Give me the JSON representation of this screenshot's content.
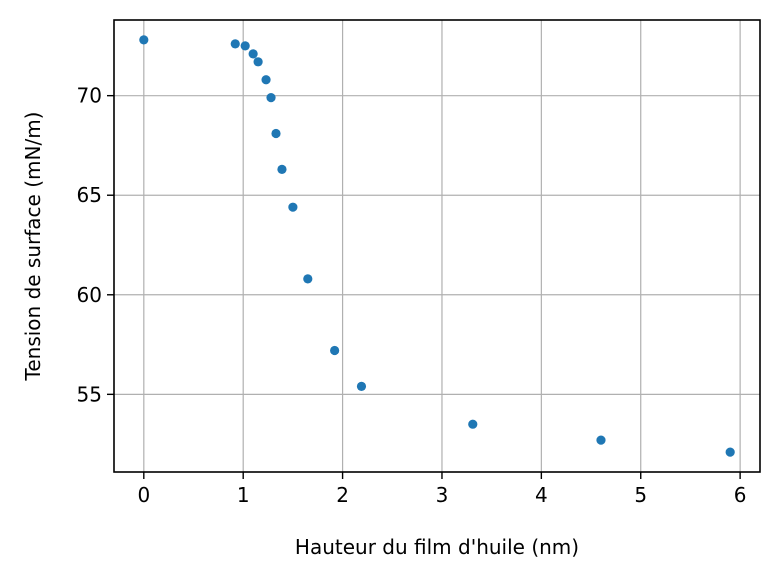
{
  "chart_data": {
    "type": "scatter",
    "xlabel": "Hauteur du film d'huile (nm)",
    "ylabel": "Tension de surface (mN/m)",
    "xlim": [
      -0.3,
      6.2
    ],
    "ylim": [
      51.1,
      73.8
    ],
    "xticks": [
      "0",
      "1",
      "2",
      "3",
      "4",
      "5",
      "6"
    ],
    "yticks": [
      "55",
      "60",
      "65",
      "70"
    ],
    "grid": true,
    "legend": "none",
    "marker_color": "#1f77b4",
    "series": [
      {
        "x": [
          0.0,
          0.92,
          1.02,
          1.1,
          1.15,
          1.23,
          1.28,
          1.33,
          1.39,
          1.5,
          1.65,
          1.92,
          2.19,
          3.31,
          4.6,
          5.9
        ],
        "y": [
          72.8,
          72.6,
          72.5,
          72.1,
          71.7,
          70.8,
          69.9,
          68.1,
          66.3,
          64.4,
          60.8,
          57.2,
          55.4,
          53.5,
          52.7,
          52.1
        ]
      }
    ]
  }
}
